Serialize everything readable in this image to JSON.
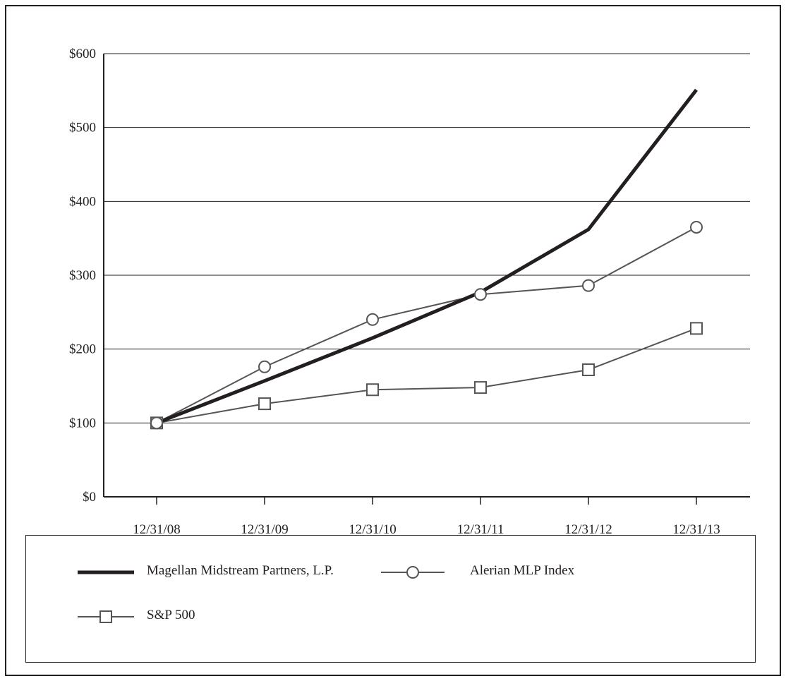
{
  "chart_data": {
    "type": "line",
    "title": "",
    "xlabel": "",
    "ylabel": "",
    "categories": [
      "12/31/08",
      "12/31/09",
      "12/31/10",
      "12/31/11",
      "12/31/12",
      "12/31/13"
    ],
    "y_ticks": [
      0,
      100,
      200,
      300,
      400,
      500,
      600
    ],
    "y_tick_labels": [
      "$0",
      "$100",
      "$200",
      "$300",
      "$400",
      "$500",
      "$600"
    ],
    "ylim": [
      0,
      600
    ],
    "grid": "horizontal",
    "legend_position": "bottom",
    "series": [
      {
        "name": "Magellan Midstream Partners, L.P.",
        "values": [
          100,
          157,
          215,
          277,
          362,
          551
        ],
        "color": "#231f20",
        "marker": "none",
        "weight": "heavy"
      },
      {
        "name": "Alerian MLP Index",
        "values": [
          100,
          176,
          240,
          274,
          286,
          365
        ],
        "color": "#555555",
        "marker": "circle",
        "weight": "light"
      },
      {
        "name": "S&P 500",
        "values": [
          100,
          126,
          145,
          148,
          172,
          228
        ],
        "color": "#555555",
        "marker": "square",
        "weight": "light"
      }
    ]
  }
}
